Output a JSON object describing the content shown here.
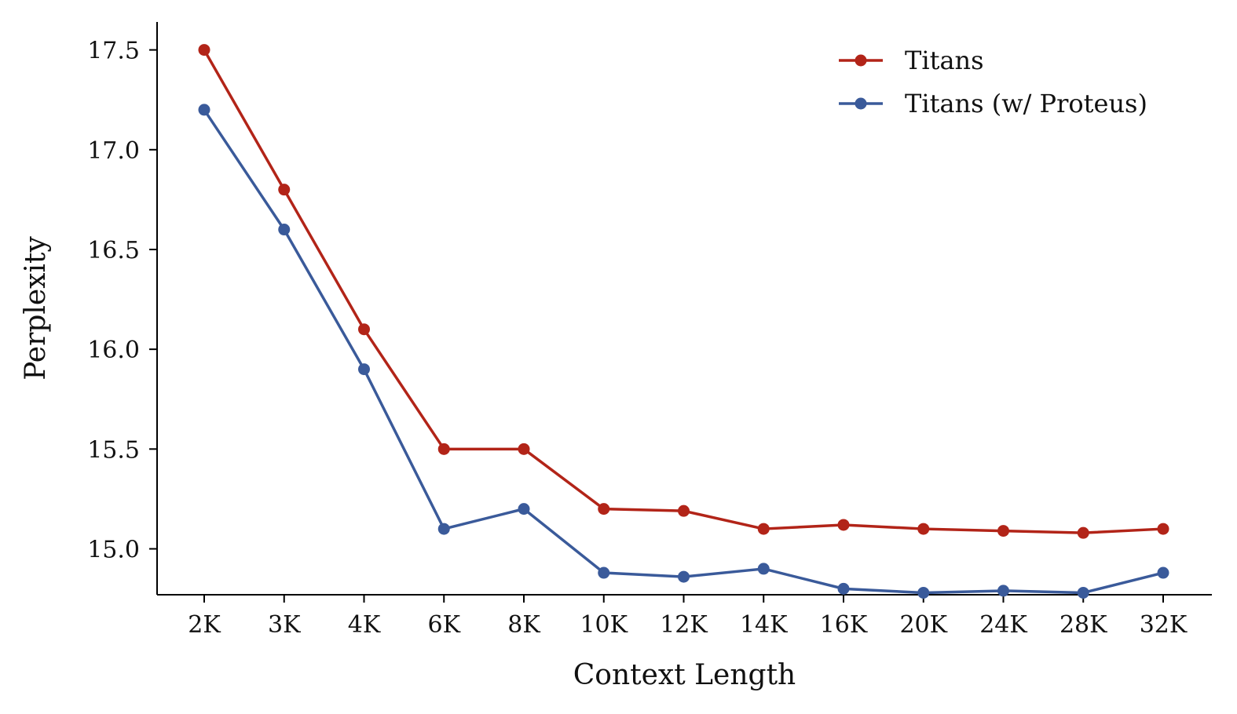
{
  "chart_data": {
    "type": "line",
    "xlabel": "Context Length",
    "ylabel": "Perplexity",
    "categories": [
      "2K",
      "3K",
      "4K",
      "6K",
      "8K",
      "10K",
      "12K",
      "14K",
      "16K",
      "20K",
      "24K",
      "28K",
      "32K"
    ],
    "ylim": [
      14.77,
      17.64
    ],
    "yticks": [
      15.0,
      15.5,
      16.0,
      16.5,
      17.0,
      17.5
    ],
    "ytick_labels": [
      "15.0",
      "15.5",
      "16.0",
      "16.5",
      "17.0",
      "17.5"
    ],
    "grid": false,
    "legend_position": "top-right",
    "series": [
      {
        "name": "Titans",
        "color": "#b22418",
        "values": [
          17.5,
          16.8,
          16.1,
          15.5,
          15.5,
          15.2,
          15.19,
          15.1,
          15.12,
          15.1,
          15.09,
          15.08,
          15.1
        ]
      },
      {
        "name": "Titans (w/ Proteus)",
        "color": "#3a5a9a",
        "values": [
          17.2,
          16.6,
          15.9,
          15.1,
          15.2,
          14.88,
          14.86,
          14.9,
          14.8,
          14.78,
          14.79,
          14.78,
          14.88
        ]
      }
    ]
  }
}
